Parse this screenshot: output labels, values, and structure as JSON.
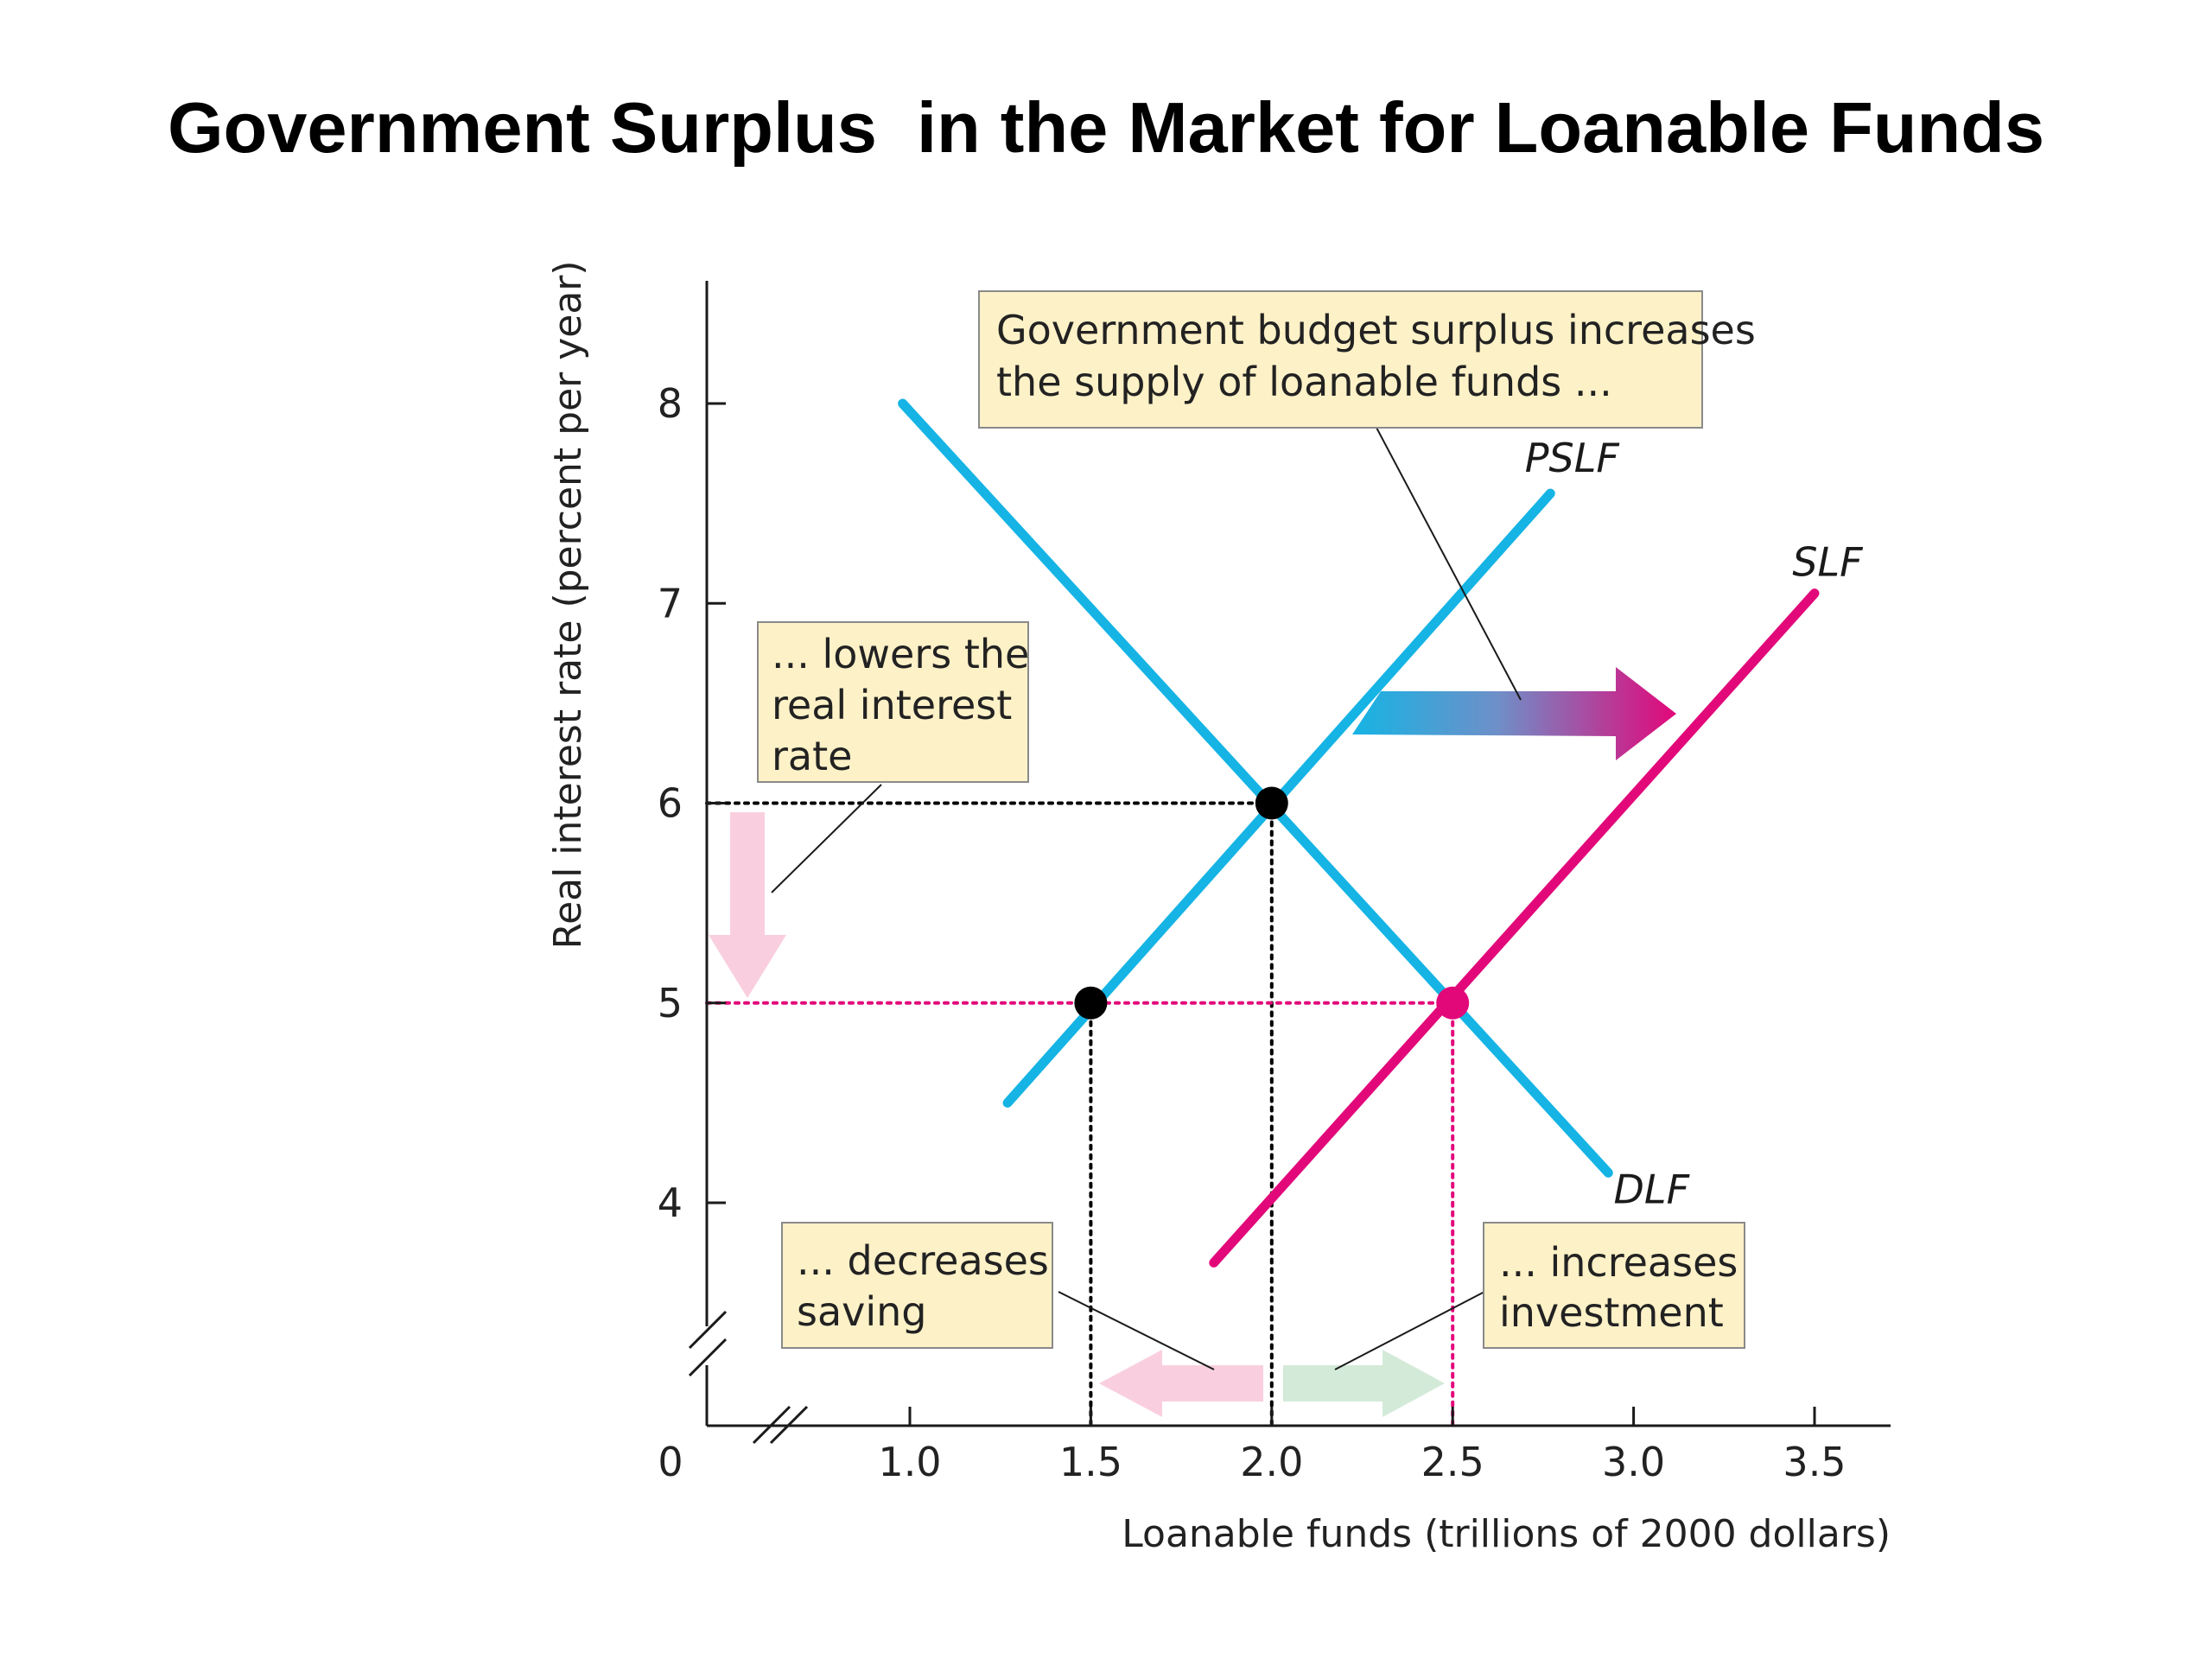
{
  "title": "Government Surplus  in the Market for Loanable Funds",
  "colors": {
    "blue_curve": "#15b4e4",
    "magenta_curve": "#e2087a",
    "callout_fill": "#fdf1c7",
    "pink_arrow": "#f9cfdf",
    "green_arrow": "#d4ead9",
    "point_black": "#000000"
  },
  "chart_data": {
    "type": "line",
    "xlabel": "Loanable funds (trillions of 2000 dollars)",
    "ylabel": "Real interest rate (percent per year)",
    "xlim": [
      0,
      3.5
    ],
    "ylim": [
      0,
      8
    ],
    "origin_label": "0",
    "x_ticks": [
      {
        "value": 1.0,
        "label": "1.0",
        "highlight": false
      },
      {
        "value": 1.5,
        "label": "1.5",
        "highlight": false
      },
      {
        "value": 2.0,
        "label": "2.0",
        "highlight": false
      },
      {
        "value": 2.5,
        "label": "2.5",
        "highlight": true
      },
      {
        "value": 3.0,
        "label": "3.0",
        "highlight": false
      },
      {
        "value": 3.5,
        "label": "3.5",
        "highlight": false
      }
    ],
    "y_ticks": [
      {
        "value": 4,
        "label": "4",
        "highlight": false
      },
      {
        "value": 5,
        "label": "5",
        "highlight": true
      },
      {
        "value": 6,
        "label": "6",
        "highlight": false
      },
      {
        "value": 7,
        "label": "7",
        "highlight": false
      },
      {
        "value": 8,
        "label": "8",
        "highlight": false
      }
    ],
    "series": [
      {
        "name": "PSLF",
        "color": "#15b4e4",
        "points": [
          [
            1.27,
            4.5
          ],
          [
            2.77,
            7.55
          ]
        ]
      },
      {
        "name": "DLF",
        "color": "#15b4e4",
        "points": [
          [
            0.98,
            8.0
          ],
          [
            2.93,
            4.15
          ]
        ]
      },
      {
        "name": "SLF",
        "color": "#e2087a",
        "points": [
          [
            1.84,
            3.7
          ],
          [
            3.5,
            7.05
          ]
        ]
      }
    ],
    "points": [
      {
        "x": 2.0,
        "y": 6,
        "color": "#000000"
      },
      {
        "x": 1.5,
        "y": 5,
        "color": "#000000"
      },
      {
        "x": 2.5,
        "y": 5,
        "color": "#e2087a"
      }
    ],
    "guides": [
      {
        "from": [
          0,
          6
        ],
        "to": [
          2.0,
          6
        ],
        "color": "#000000"
      },
      {
        "from": [
          2.0,
          6
        ],
        "to": [
          2.0,
          3.1
        ],
        "color": "#000000"
      },
      {
        "from": [
          0,
          5
        ],
        "to": [
          2.5,
          5
        ],
        "color": "#e2087a"
      },
      {
        "from": [
          1.5,
          5
        ],
        "to": [
          1.5,
          3.1
        ],
        "color": "#000000"
      },
      {
        "from": [
          2.5,
          5
        ],
        "to": [
          2.5,
          3.1
        ],
        "color": "#e2087a"
      }
    ],
    "annotations": [
      {
        "lines": [
          "Government budget surplus increases",
          "the supply of loanable funds ..."
        ]
      },
      {
        "lines": [
          "... lowers the",
          "real interest",
          "rate"
        ]
      },
      {
        "lines": [
          "... decreases",
          "saving"
        ]
      },
      {
        "lines": [
          "... increases",
          "investment"
        ]
      }
    ]
  }
}
